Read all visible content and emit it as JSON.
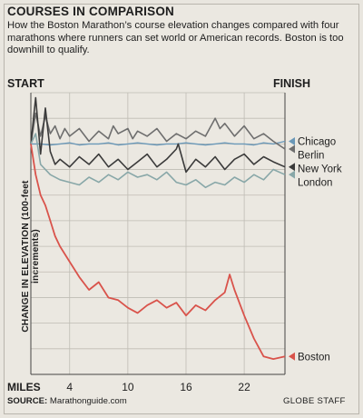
{
  "header": {
    "title": "COURSES IN COMPARISON",
    "subtitle": "How the Boston Marathon’s course elevation changes compared with four marathons where runners can set world or American records. Boston is too downhill to qualify."
  },
  "labels": {
    "start": "START",
    "finish": "FINISH"
  },
  "footer": {
    "source_label": "SOURCE:",
    "source_value": "Marathonguide.com",
    "credit": "GLOBE STAFF"
  },
  "chart_data": {
    "type": "line",
    "title": "COURSES IN COMPARISON",
    "ylabel": "CHANGE IN ELEVATION (100-feet increments)",
    "xlabel": "MILES",
    "x_ticks": [
      "MILES",
      "4",
      "10",
      "16",
      "22"
    ],
    "x_tick_miles": [
      0,
      4,
      10,
      16,
      22
    ],
    "xlim": [
      0,
      26.2
    ],
    "ylim": [
      -4.5,
      1.0
    ],
    "grid": true,
    "legend": "right, labels at line ends",
    "series": [
      {
        "name": "Chicago",
        "color": "#6a98b8",
        "x": [
          0,
          1,
          2,
          3,
          4,
          5,
          6,
          7,
          8,
          9,
          10,
          11,
          12,
          13,
          14,
          15,
          16,
          17,
          18,
          19,
          20,
          21,
          22,
          23,
          24,
          25,
          26.2
        ],
        "y": [
          0.0,
          0.0,
          -0.02,
          0.0,
          0.02,
          -0.02,
          0.0,
          0.0,
          0.02,
          -0.02,
          0.0,
          0.02,
          0.0,
          -0.02,
          0.0,
          0.0,
          0.02,
          0.0,
          -0.02,
          0.0,
          0.02,
          0.0,
          0.0,
          -0.02,
          0.02,
          0.0,
          0.05
        ]
      },
      {
        "name": "Berlin",
        "color": "#6e6e6e",
        "x": [
          0,
          0.5,
          1,
          1.5,
          2,
          2.5,
          3,
          3.5,
          4,
          5,
          6,
          7,
          8,
          8.5,
          9,
          10,
          10.5,
          11,
          12,
          13,
          14,
          15,
          16,
          17,
          18,
          19,
          19.5,
          20,
          21,
          22,
          23,
          24,
          25,
          26.2
        ],
        "y": [
          0.0,
          0.6,
          0.15,
          0.55,
          0.2,
          0.35,
          0.1,
          0.3,
          0.15,
          0.3,
          0.05,
          0.25,
          0.1,
          0.35,
          0.2,
          0.3,
          0.1,
          0.25,
          0.15,
          0.3,
          0.05,
          0.2,
          0.1,
          0.25,
          0.15,
          0.5,
          0.3,
          0.4,
          0.15,
          0.35,
          0.1,
          0.2,
          0.05,
          -0.1
        ]
      },
      {
        "name": "New York",
        "color": "#3a3a3a",
        "x": [
          0,
          0.5,
          1,
          1.5,
          2,
          2.5,
          3,
          4,
          5,
          6,
          7,
          8,
          9,
          10,
          11,
          12,
          13,
          14,
          15,
          15.2,
          16,
          17,
          18,
          19,
          20,
          21,
          22,
          23,
          24,
          25,
          26.2
        ],
        "y": [
          0.0,
          0.9,
          -0.2,
          0.7,
          -0.15,
          -0.4,
          -0.3,
          -0.45,
          -0.25,
          -0.4,
          -0.2,
          -0.45,
          -0.3,
          -0.5,
          -0.35,
          -0.2,
          -0.45,
          -0.3,
          -0.1,
          0.0,
          -0.55,
          -0.3,
          -0.45,
          -0.25,
          -0.5,
          -0.3,
          -0.2,
          -0.4,
          -0.25,
          -0.35,
          -0.45
        ]
      },
      {
        "name": "London",
        "color": "#88a7a8",
        "x": [
          0,
          0.5,
          1,
          2,
          3,
          4,
          5,
          6,
          7,
          8,
          9,
          10,
          11,
          12,
          13,
          14,
          15,
          16,
          17,
          18,
          19,
          20,
          21,
          22,
          23,
          24,
          25,
          26.2
        ],
        "y": [
          0.0,
          0.2,
          -0.4,
          -0.6,
          -0.7,
          -0.75,
          -0.8,
          -0.65,
          -0.75,
          -0.6,
          -0.7,
          -0.55,
          -0.65,
          -0.6,
          -0.7,
          -0.55,
          -0.75,
          -0.8,
          -0.7,
          -0.85,
          -0.75,
          -0.8,
          -0.65,
          -0.75,
          -0.6,
          -0.7,
          -0.5,
          -0.6
        ]
      },
      {
        "name": "Boston",
        "color": "#d9534b",
        "x": [
          0,
          0.5,
          1,
          1.5,
          2,
          2.5,
          3,
          4,
          5,
          6,
          7,
          8,
          9,
          10,
          11,
          12,
          13,
          14,
          15,
          16,
          17,
          18,
          19,
          20,
          20.5,
          21,
          22,
          23,
          24,
          25,
          26.2
        ],
        "y": [
          0.0,
          -0.6,
          -1.0,
          -1.2,
          -1.5,
          -1.8,
          -2.0,
          -2.3,
          -2.6,
          -2.85,
          -2.7,
          -3.0,
          -3.05,
          -3.2,
          -3.3,
          -3.15,
          -3.05,
          -3.2,
          -3.1,
          -3.35,
          -3.15,
          -3.25,
          -3.05,
          -2.9,
          -2.55,
          -2.85,
          -3.35,
          -3.8,
          -4.15,
          -4.2,
          -4.15
        ]
      }
    ]
  }
}
